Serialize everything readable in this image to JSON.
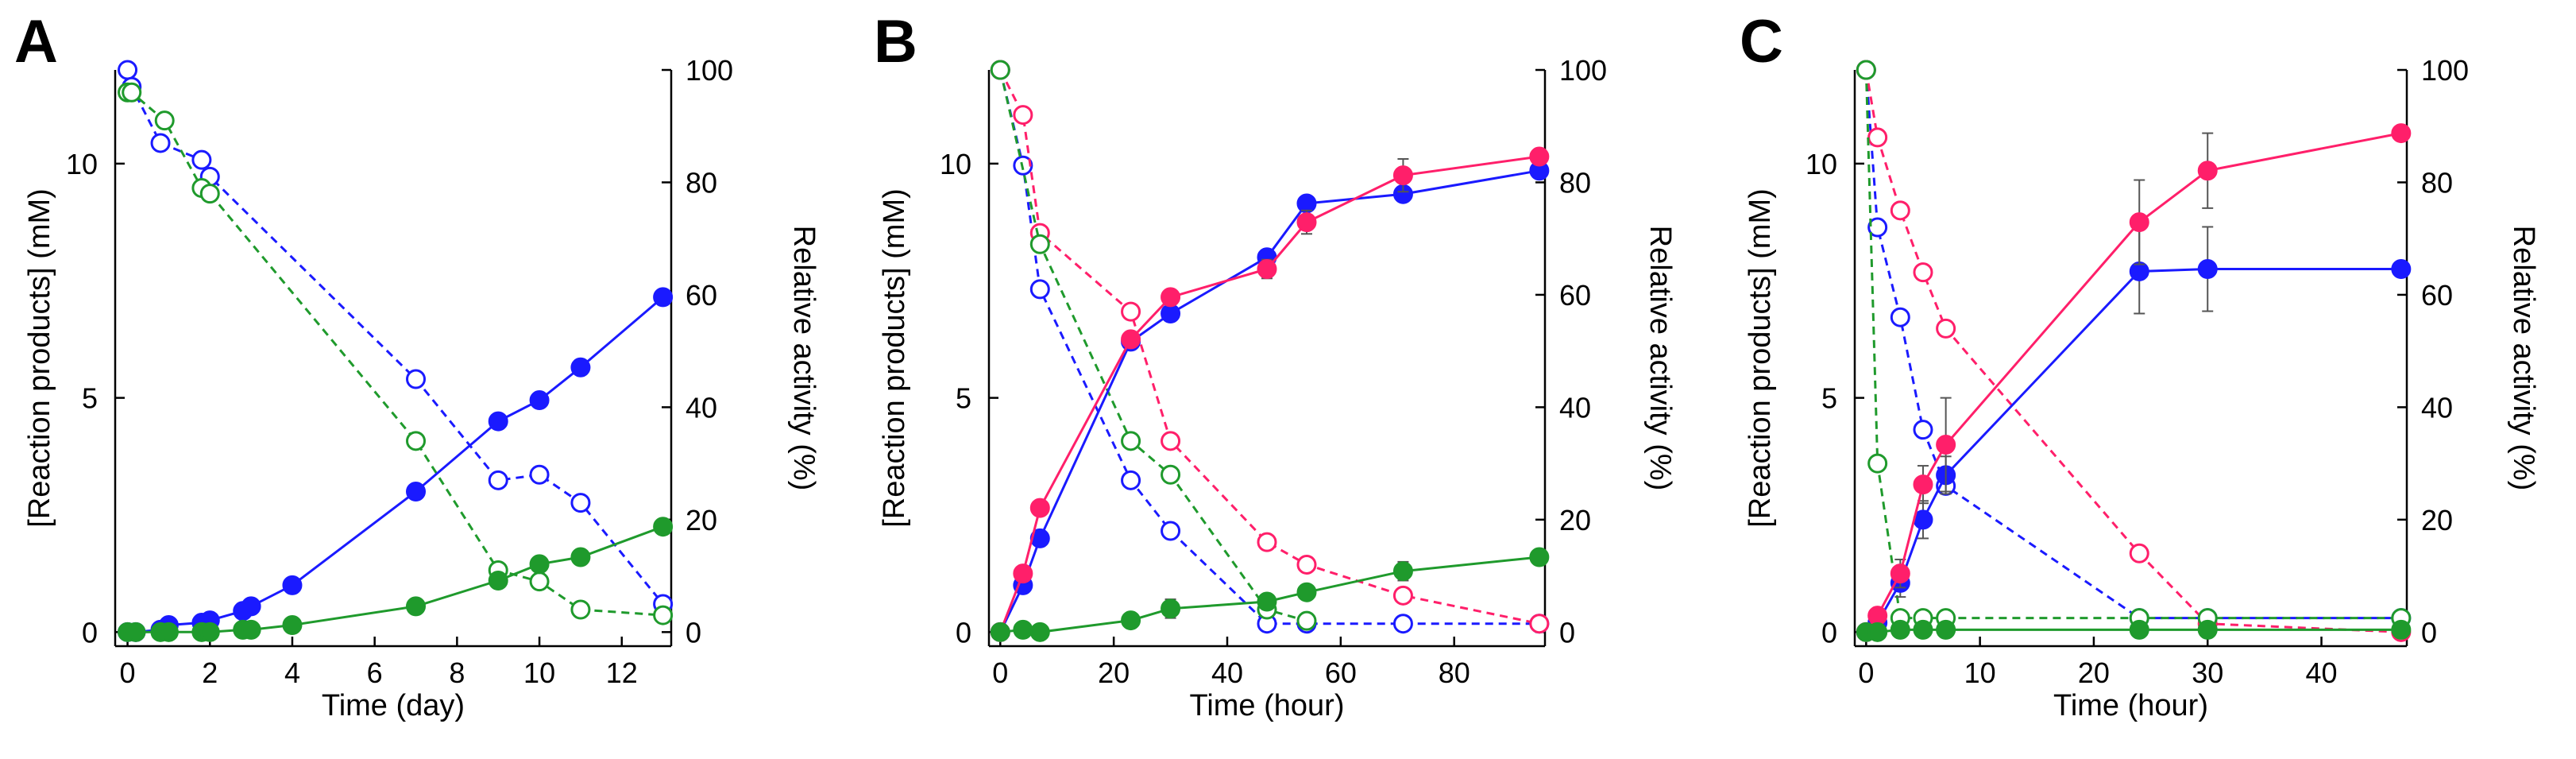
{
  "colors": {
    "blue": "#1a1aff",
    "green": "#1f9a2c",
    "pink": "#ff1f6a",
    "axis": "#000000",
    "error": "#555555"
  },
  "chart_data": [
    {
      "panel_label": "A",
      "type": "line",
      "xlabel": "Time (day)",
      "ylabel": "[Reaction products] (mM)",
      "y2label": "Relative activity (%)",
      "xlim": [
        -0.3,
        13.2
      ],
      "ylim": [
        -0.3,
        12
      ],
      "y2lim": [
        -2.5,
        100.0
      ],
      "xticks": [
        0,
        2,
        4,
        6,
        8,
        10,
        12
      ],
      "yticks": [
        0,
        5,
        10
      ],
      "y2ticks": [
        0,
        20,
        40,
        60,
        80,
        100
      ],
      "series": [
        {
          "name": "products-blue",
          "axis": "left",
          "color": "blue",
          "style": "solid",
          "filled": true,
          "x": [
            0,
            0.2,
            0.8,
            1,
            1.8,
            2,
            2.8,
            3,
            4,
            7,
            9,
            10,
            11,
            13
          ],
          "y": [
            0,
            0,
            0.05,
            0.15,
            0.2,
            0.25,
            0.45,
            0.55,
            1.0,
            3.0,
            4.5,
            4.95,
            5.65,
            7.15
          ]
        },
        {
          "name": "products-green",
          "axis": "left",
          "color": "green",
          "style": "solid",
          "filled": true,
          "x": [
            0,
            0.2,
            0.8,
            1,
            1.8,
            2,
            2.8,
            3,
            4,
            7,
            9,
            10,
            11,
            13
          ],
          "y": [
            0,
            0,
            0,
            0,
            0,
            0,
            0.05,
            0.05,
            0.15,
            0.55,
            1.1,
            1.45,
            1.6,
            2.25
          ]
        },
        {
          "name": "activity-blue",
          "axis": "right",
          "color": "blue",
          "style": "dashed",
          "filled": false,
          "x": [
            0,
            0.1,
            0.8,
            1.8,
            2,
            7,
            9,
            10,
            11,
            13
          ],
          "y": [
            100,
            97,
            87,
            84,
            81,
            45,
            27,
            28,
            23,
            5
          ]
        },
        {
          "name": "activity-green",
          "axis": "right",
          "color": "green",
          "style": "dashed",
          "filled": false,
          "x": [
            0,
            0.1,
            0.9,
            1.8,
            2,
            7,
            9,
            10,
            11,
            13
          ],
          "y": [
            96,
            96,
            91,
            79,
            78,
            34,
            11,
            9,
            4,
            3
          ]
        }
      ]
    },
    {
      "panel_label": "B",
      "type": "line",
      "xlabel": "Time (hour)",
      "ylabel": "[Reaction products] (mM)",
      "y2label": "Relative activity (%)",
      "xlim": [
        -2,
        96
      ],
      "ylim": [
        -0.3,
        12
      ],
      "y2lim": [
        -2.5,
        100.0
      ],
      "xticks": [
        0,
        20,
        40,
        60,
        80
      ],
      "yticks": [
        0,
        5,
        10
      ],
      "y2ticks": [
        0,
        20,
        40,
        60,
        80,
        100
      ],
      "series": [
        {
          "name": "products-blue",
          "axis": "left",
          "color": "blue",
          "style": "solid",
          "filled": true,
          "x": [
            0,
            4,
            7,
            23,
            30,
            47,
            54,
            71,
            95
          ],
          "y": [
            0,
            1.0,
            2.0,
            6.2,
            6.8,
            8.0,
            9.15,
            9.35,
            9.85
          ]
        },
        {
          "name": "products-pink",
          "axis": "left",
          "color": "pink",
          "style": "solid",
          "filled": true,
          "x": [
            0,
            4,
            7,
            23,
            30,
            47,
            54,
            71,
            95
          ],
          "y": [
            0,
            1.25,
            2.65,
            6.25,
            7.15,
            7.75,
            8.75,
            9.75,
            10.15
          ],
          "err": [
            0,
            0,
            0,
            0,
            0.15,
            0.2,
            0.25,
            0.35,
            0
          ]
        },
        {
          "name": "products-green",
          "axis": "left",
          "color": "green",
          "style": "solid",
          "filled": true,
          "x": [
            0,
            4,
            7,
            23,
            30,
            47,
            54,
            71,
            95
          ],
          "y": [
            0,
            0.05,
            0,
            0.25,
            0.5,
            0.65,
            0.85,
            1.3,
            1.6
          ],
          "err": [
            0,
            0,
            0,
            0,
            0.2,
            0,
            0,
            0.2,
            0
          ]
        },
        {
          "name": "activity-blue",
          "axis": "right",
          "color": "blue",
          "style": "dashed",
          "filled": false,
          "x": [
            0,
            4,
            7,
            23,
            30,
            47,
            54,
            71,
            95
          ],
          "y": [
            100,
            83,
            61,
            27,
            18,
            1.5,
            1.5,
            1.5,
            1.5
          ]
        },
        {
          "name": "activity-pink",
          "axis": "right",
          "color": "pink",
          "style": "dashed",
          "filled": false,
          "x": [
            0,
            4,
            7,
            23,
            30,
            47,
            54,
            71,
            95
          ],
          "y": [
            100,
            92,
            71,
            57,
            34,
            16,
            12,
            6.5,
            1.5
          ]
        },
        {
          "name": "activity-green",
          "axis": "right",
          "color": "green",
          "style": "dashed",
          "filled": false,
          "x": [
            0,
            7,
            23,
            30,
            47,
            54
          ],
          "y": [
            100,
            69,
            34,
            28,
            4,
            2
          ]
        }
      ]
    },
    {
      "panel_label": "C",
      "type": "line",
      "xlabel": "Time (hour)",
      "ylabel": "[Reaction products] (mM)",
      "y2label": "Relative activity (%)",
      "xlim": [
        -1,
        47.5
      ],
      "ylim": [
        -0.3,
        12
      ],
      "y2lim": [
        -2.5,
        100.0
      ],
      "xticks": [
        0,
        10,
        20,
        30,
        40
      ],
      "yticks": [
        0,
        5,
        10
      ],
      "y2ticks": [
        0,
        20,
        40,
        60,
        80,
        100
      ],
      "series": [
        {
          "name": "products-blue",
          "axis": "left",
          "color": "blue",
          "style": "solid",
          "filled": true,
          "x": [
            0,
            1,
            3,
            5,
            7,
            24,
            30,
            47
          ],
          "y": [
            0,
            0.2,
            1.05,
            2.4,
            3.35,
            7.7,
            7.75,
            7.75
          ],
          "err": [
            0,
            0,
            0.3,
            0.4,
            0.4,
            0.9,
            0.9,
            0
          ]
        },
        {
          "name": "products-pink",
          "axis": "left",
          "color": "pink",
          "style": "solid",
          "filled": true,
          "x": [
            0,
            1,
            3,
            5,
            7,
            24,
            30,
            47
          ],
          "y": [
            0,
            0.35,
            1.25,
            3.15,
            4.0,
            8.75,
            9.85,
            10.65
          ],
          "err": [
            0,
            0,
            0.3,
            0.4,
            1.0,
            0.9,
            0.8,
            0
          ]
        },
        {
          "name": "products-green",
          "axis": "left",
          "color": "green",
          "style": "solid",
          "filled": true,
          "x": [
            0,
            1,
            3,
            5,
            7,
            24,
            30,
            47
          ],
          "y": [
            0,
            0,
            0.05,
            0.05,
            0.05,
            0.05,
            0.05,
            0.05
          ]
        },
        {
          "name": "activity-blue",
          "axis": "right",
          "color": "blue",
          "style": "dashed",
          "filled": false,
          "x": [
            0,
            1,
            3,
            5,
            7,
            24,
            30,
            47
          ],
          "y": [
            100,
            72,
            56,
            36,
            26,
            2.5,
            2.5,
            2.5
          ]
        },
        {
          "name": "activity-pink",
          "axis": "right",
          "color": "pink",
          "style": "dashed",
          "filled": false,
          "x": [
            0,
            1,
            3,
            5,
            7,
            24,
            30,
            47
          ],
          "y": [
            100,
            88,
            75,
            64,
            54,
            14,
            1.5,
            0
          ]
        },
        {
          "name": "activity-green",
          "axis": "right",
          "color": "green",
          "style": "dashed",
          "filled": false,
          "x": [
            0,
            1,
            3,
            5,
            7,
            24,
            30,
            47
          ],
          "y": [
            100,
            30,
            2.5,
            2.5,
            2.5,
            2.5,
            2.5,
            2.5
          ]
        }
      ]
    }
  ]
}
